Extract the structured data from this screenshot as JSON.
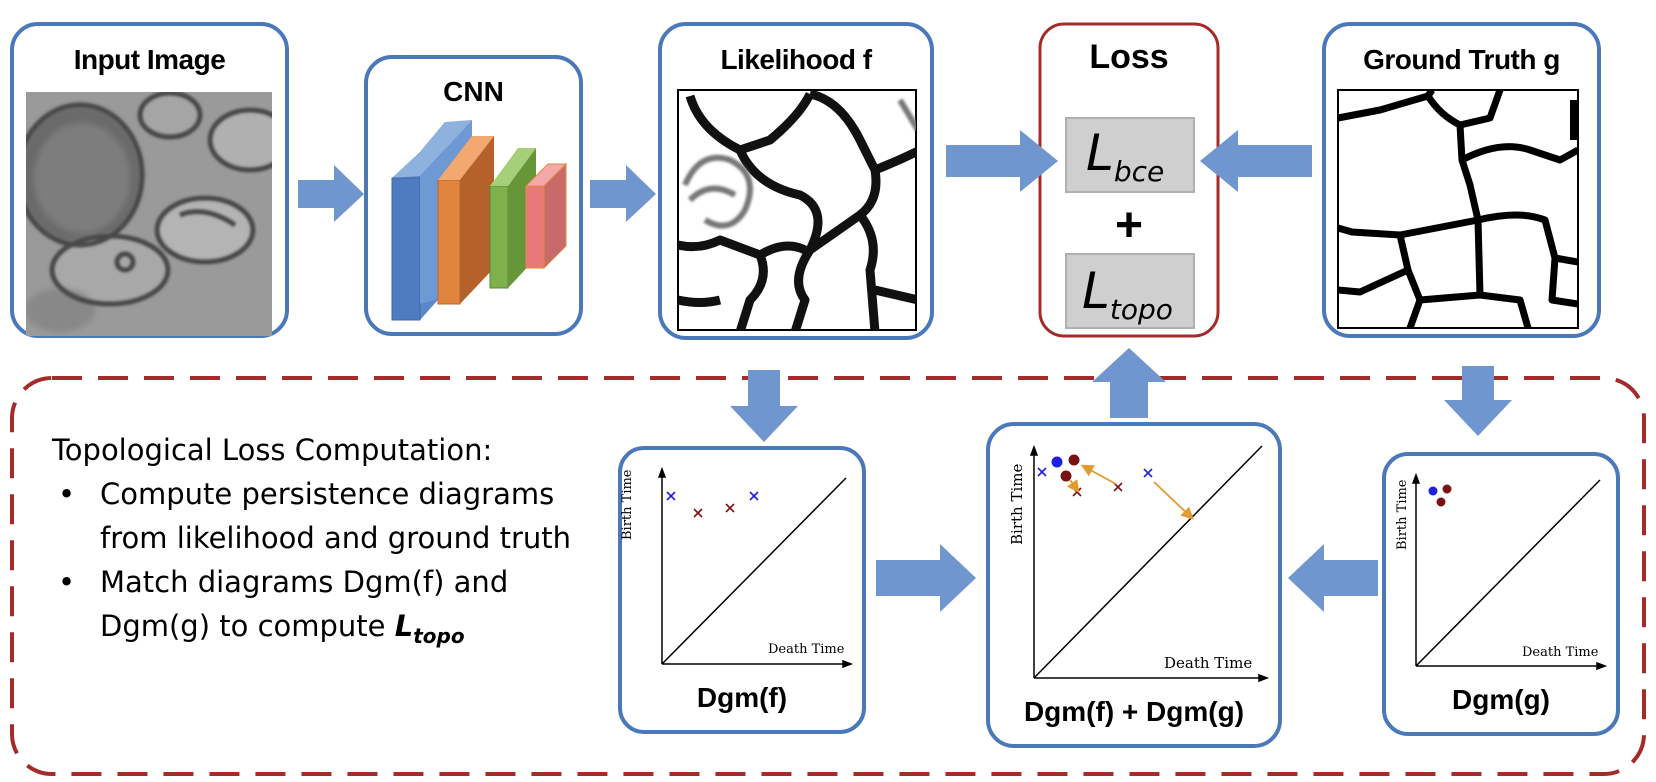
{
  "boxes": {
    "input_title": "Input Image",
    "cnn_title": "CNN",
    "likelihood_title": "Likelihood f",
    "loss_title": "Loss",
    "gt_title": "Ground Truth g"
  },
  "loss": {
    "bce_main": "L",
    "bce_sub": "bce",
    "plus": "+",
    "topo_main": "L",
    "topo_sub": "topo"
  },
  "description": {
    "heading": "Topological Loss Computation:",
    "bullet": "•",
    "item1": "Compute persistence diagrams from likelihood and ground truth",
    "item2_prefix": "Match diagrams Dgm(f) and Dgm(g)  to compute ",
    "item2_L": "L",
    "item2_sub": "topo"
  },
  "diagrams": {
    "dgm_f": "Dgm(f)",
    "dgm_sum": "Dgm(f) + Dgm(g)",
    "dgm_g": "Dgm(g)",
    "birth_label": "Birth Time",
    "death_label": "Death Time"
  },
  "colors": {
    "blue_border": "#4a78b8",
    "red_border": "#a52a2a",
    "arrow_fill": "#6f96ce",
    "blue_point": "#1f1fe0",
    "red_point": "#7b1212",
    "orange_arrow": "#e39a2e"
  }
}
